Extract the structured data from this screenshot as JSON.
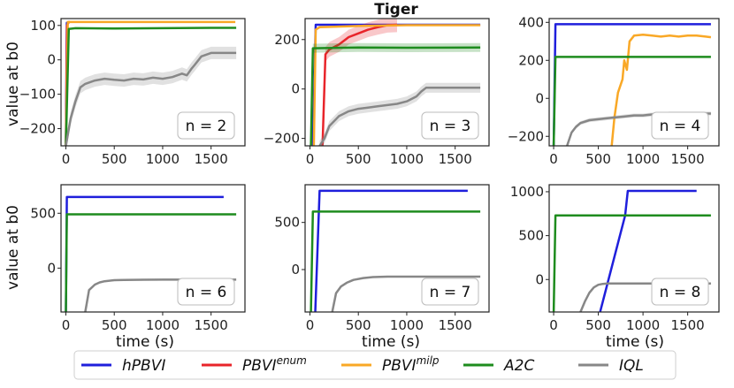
{
  "title": "Tiger",
  "ylabel": "value at b0",
  "xlabel": "time (s)",
  "colors": {
    "hPBVI": "#1f1fdc",
    "PBVI_enum": "#e8242a",
    "PBVI_milp": "#f9a826",
    "A2C": "#1e8c1e",
    "IQL": "#878787"
  },
  "legend": [
    {
      "key": "hPBVI",
      "label": "hPBVI",
      "sup": ""
    },
    {
      "key": "PBVI_enum",
      "label": "PBVI",
      "sup": "enum"
    },
    {
      "key": "PBVI_milp",
      "label": "PBVI",
      "sup": "milp"
    },
    {
      "key": "A2C",
      "label": "A2C",
      "sup": ""
    },
    {
      "key": "IQL",
      "label": "IQL",
      "sup": ""
    }
  ],
  "chart_data": [
    {
      "type": "line",
      "panel_label": "n = 2",
      "xlim": [
        -50,
        1850
      ],
      "ylim": [
        -250,
        120
      ],
      "xticks": [
        0,
        500,
        1000,
        1500
      ],
      "yticks": [
        -200,
        -100,
        0,
        100
      ],
      "series": [
        {
          "name": "hPBVI",
          "x": [
            0,
            10,
            30
          ],
          "y": [
            -250,
            108,
            108
          ]
        },
        {
          "name": "PBVI_enum",
          "x": [
            0,
            12,
            30,
            40
          ],
          "y": [
            -250,
            100,
            110,
            110
          ]
        },
        {
          "name": "PBVI_milp",
          "x": [
            0,
            20,
            100,
            1750
          ],
          "y": [
            -250,
            110,
            110,
            110
          ]
        },
        {
          "name": "A2C",
          "x": [
            0,
            30,
            100,
            500,
            1000,
            1500,
            1760
          ],
          "y": [
            -250,
            90,
            92,
            91,
            92,
            93,
            93
          ]
        },
        {
          "name": "IQL",
          "x": [
            0,
            50,
            100,
            150,
            200,
            300,
            400,
            500,
            600,
            700,
            800,
            900,
            1000,
            1100,
            1200,
            1250,
            1300,
            1330,
            1400,
            1500,
            1600,
            1700,
            1760
          ],
          "y": [
            -250,
            -170,
            -120,
            -80,
            -70,
            -60,
            -55,
            -58,
            -60,
            -55,
            -57,
            -52,
            -55,
            -50,
            -40,
            -45,
            -25,
            -15,
            10,
            20,
            20,
            20,
            20
          ],
          "band": 18
        }
      ]
    },
    {
      "type": "line",
      "panel_label": "n = 3",
      "xlim": [
        -50,
        1850
      ],
      "ylim": [
        -230,
        285
      ],
      "xticks": [
        0,
        500,
        1000,
        1500
      ],
      "yticks": [
        -200,
        0,
        200
      ],
      "series": [
        {
          "name": "hPBVI",
          "x": [
            30,
            60,
            1760
          ],
          "y": [
            -230,
            260,
            260
          ]
        },
        {
          "name": "PBVI_enum",
          "x": [
            130,
            160,
            200,
            300,
            400,
            500,
            600,
            700,
            800,
            900
          ],
          "y": [
            -230,
            140,
            160,
            180,
            210,
            225,
            240,
            250,
            258,
            260
          ],
          "band": 30
        },
        {
          "name": "PBVI_milp",
          "x": [
            40,
            60,
            100,
            500,
            1000,
            1760
          ],
          "y": [
            -230,
            240,
            250,
            255,
            258,
            258
          ]
        },
        {
          "name": "A2C",
          "x": [
            10,
            30,
            500,
            1000,
            1760
          ],
          "y": [
            -230,
            165,
            168,
            167,
            168
          ],
          "band": 18
        },
        {
          "name": "IQL",
          "x": [
            100,
            150,
            200,
            300,
            400,
            500,
            600,
            700,
            800,
            900,
            1000,
            1100,
            1150,
            1200,
            1300,
            1760
          ],
          "y": [
            -230,
            -200,
            -150,
            -110,
            -90,
            -80,
            -75,
            -70,
            -65,
            -60,
            -50,
            -30,
            -10,
            5,
            5,
            5
          ],
          "band": 20
        }
      ]
    },
    {
      "type": "line",
      "panel_label": "n = 4",
      "xlim": [
        -50,
        1850
      ],
      "ylim": [
        -250,
        420
      ],
      "xticks": [
        0,
        500,
        1000,
        1500
      ],
      "yticks": [
        -200,
        0,
        200,
        400
      ],
      "series": [
        {
          "name": "hPBVI",
          "x": [
            0,
            20,
            1760
          ],
          "y": [
            -250,
            390,
            390
          ]
        },
        {
          "name": "PBVI_milp",
          "x": [
            650,
            680,
            720,
            770,
            790,
            820,
            850,
            900,
            1000,
            1100,
            1200,
            1300,
            1400,
            1500,
            1600,
            1700,
            1760
          ],
          "y": [
            -250,
            -100,
            30,
            100,
            200,
            150,
            300,
            330,
            335,
            330,
            325,
            330,
            325,
            330,
            330,
            325,
            322
          ]
        },
        {
          "name": "A2C",
          "x": [
            0,
            20,
            500,
            1000,
            1500,
            1760
          ],
          "y": [
            -250,
            218,
            218,
            218,
            218,
            218
          ]
        },
        {
          "name": "IQL",
          "x": [
            150,
            200,
            250,
            300,
            400,
            500,
            600,
            700,
            800,
            900,
            1000,
            1100,
            1200,
            1300,
            1400,
            1500,
            1600,
            1760
          ],
          "y": [
            -250,
            -180,
            -150,
            -130,
            -115,
            -110,
            -105,
            -100,
            -95,
            -90,
            -90,
            -85,
            -85,
            -80,
            -80,
            -80,
            -80,
            -80
          ],
          "band": 10
        }
      ]
    },
    {
      "type": "line",
      "panel_label": "n = 6",
      "xlim": [
        -50,
        1850
      ],
      "ylim": [
        -400,
        760
      ],
      "xticks": [
        0,
        500,
        1000,
        1500
      ],
      "yticks": [
        0,
        500
      ],
      "series": [
        {
          "name": "hPBVI",
          "x": [
            0,
            10,
            1630
          ],
          "y": [
            -400,
            648,
            648
          ]
        },
        {
          "name": "A2C",
          "x": [
            0,
            10,
            1760
          ],
          "y": [
            -400,
            490,
            490
          ]
        },
        {
          "name": "IQL",
          "x": [
            200,
            240,
            300,
            350,
            400,
            500,
            600,
            800,
            1000,
            1200,
            1400,
            1600,
            1760
          ],
          "y": [
            -400,
            -200,
            -150,
            -130,
            -120,
            -110,
            -108,
            -106,
            -105,
            -105,
            -105,
            -105,
            -105
          ],
          "band": 8
        }
      ]
    },
    {
      "type": "line",
      "panel_label": "n = 7",
      "xlim": [
        -50,
        1850
      ],
      "ylim": [
        -450,
        900
      ],
      "xticks": [
        0,
        500,
        1000,
        1500
      ],
      "yticks": [
        0,
        500
      ],
      "series": [
        {
          "name": "hPBVI",
          "x": [
            55,
            100,
            1630
          ],
          "y": [
            -450,
            835,
            835
          ]
        },
        {
          "name": "A2C",
          "x": [
            10,
            30,
            1760
          ],
          "y": [
            -450,
            615,
            615
          ]
        },
        {
          "name": "IQL",
          "x": [
            230,
            270,
            320,
            380,
            450,
            550,
            650,
            800,
            1000,
            1200,
            1400,
            1600,
            1760
          ],
          "y": [
            -450,
            -250,
            -180,
            -140,
            -110,
            -90,
            -80,
            -75,
            -75,
            -75,
            -75,
            -75,
            -75
          ],
          "band": 8
        }
      ]
    },
    {
      "type": "line",
      "panel_label": "n = 8",
      "xlim": [
        -50,
        1850
      ],
      "ylim": [
        -370,
        1080
      ],
      "xticks": [
        0,
        500,
        1000,
        1500
      ],
      "yticks": [
        0,
        500,
        1000
      ],
      "series": [
        {
          "name": "hPBVI",
          "x": [
            520,
            800,
            830,
            1600
          ],
          "y": [
            -370,
            730,
            1010,
            1010
          ]
        },
        {
          "name": "A2C",
          "x": [
            0,
            20,
            1760
          ],
          "y": [
            -370,
            730,
            730
          ]
        },
        {
          "name": "IQL",
          "x": [
            300,
            350,
            400,
            450,
            500,
            550,
            600,
            700,
            800,
            1000,
            1200,
            1400,
            1600,
            1760
          ],
          "y": [
            -370,
            -250,
            -150,
            -90,
            -60,
            -50,
            -45,
            -45,
            -45,
            -45,
            -45,
            -45,
            -45,
            -45
          ],
          "band": 8
        }
      ]
    }
  ]
}
